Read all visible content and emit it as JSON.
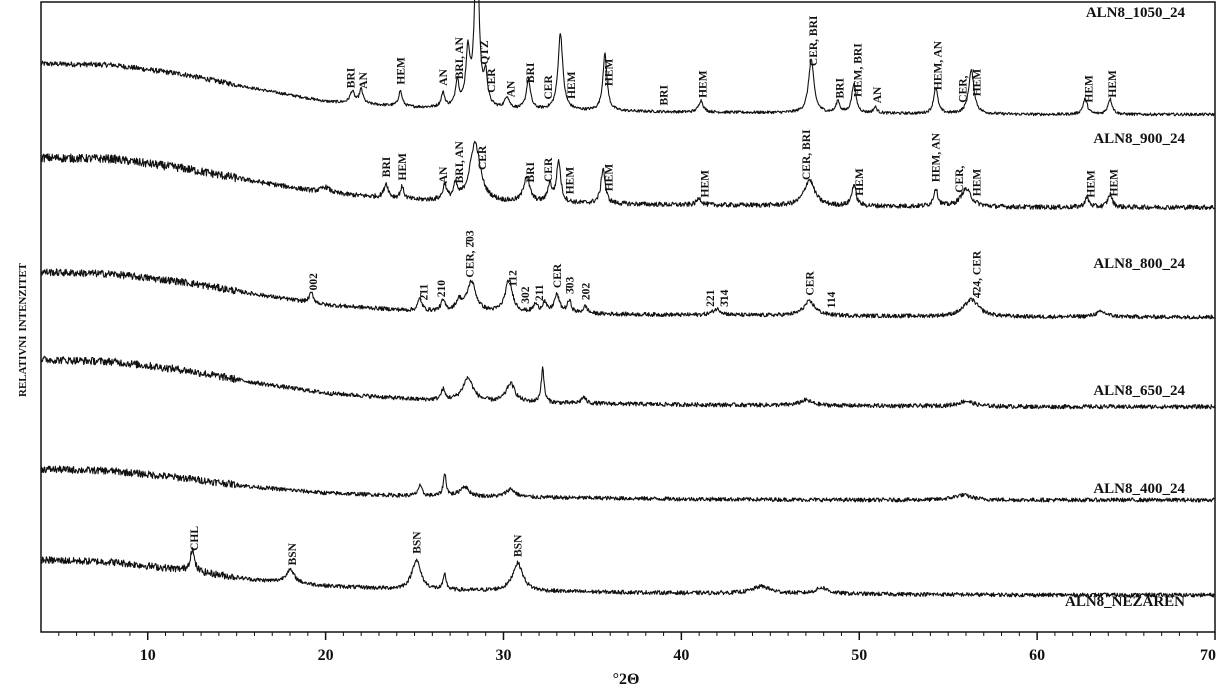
{
  "chart_data": {
    "type": "line",
    "title": "",
    "xlabel": "°2Θ",
    "ylabel": "Relativni intenzitet",
    "xlim": [
      4,
      70
    ],
    "x_ticks": [
      10,
      20,
      30,
      40,
      50,
      60,
      70
    ],
    "x_tick_labels": [
      "10",
      "20",
      "30",
      "40",
      "50",
      "60",
      "70"
    ],
    "grid": false,
    "legend": "none",
    "series": [
      {
        "name": "Aln8_1050_24",
        "display_name": "ALN8_1050_24",
        "baseline": [
          [
            4,
            0.46
          ],
          [
            8,
            0.45
          ],
          [
            12,
            0.37
          ],
          [
            16,
            0.25
          ],
          [
            20,
            0.14
          ],
          [
            25,
            0.09
          ],
          [
            30,
            0.07
          ],
          [
            40,
            0.05
          ],
          [
            50,
            0.04
          ],
          [
            60,
            0.03
          ],
          [
            70,
            0.03
          ]
        ],
        "peaks": [
          [
            21.5,
            0.1,
            0.15
          ],
          [
            22,
            0.12,
            0.12
          ],
          [
            24.2,
            0.13,
            0.12
          ],
          [
            26.6,
            0.12,
            0.12
          ],
          [
            27.4,
            0.22,
            0.12
          ],
          [
            28,
            0.45,
            0.14
          ],
          [
            28.5,
            1.5,
            0.14
          ],
          [
            29,
            0.25,
            0.12
          ],
          [
            30.2,
            0.1,
            0.15
          ],
          [
            31.4,
            0.25,
            0.14
          ],
          [
            33.2,
            0.65,
            0.16
          ],
          [
            35.7,
            0.48,
            0.14
          ],
          [
            41.1,
            0.1,
            0.15
          ],
          [
            47.3,
            0.45,
            0.18
          ],
          [
            48.8,
            0.1,
            0.12
          ],
          [
            49.7,
            0.25,
            0.14
          ],
          [
            50.9,
            0.05,
            0.12
          ],
          [
            54.3,
            0.22,
            0.14
          ],
          [
            56.3,
            0.37,
            0.18
          ],
          [
            62.7,
            0.13,
            0.15
          ],
          [
            64.1,
            0.13,
            0.15
          ]
        ],
        "annotations": [
          {
            "text": "BRI",
            "x": 21.4
          },
          {
            "text": "AN",
            "x": 22.1
          },
          {
            "text": "HEM",
            "x": 24.2
          },
          {
            "text": "AN",
            "x": 26.6
          },
          {
            "text": "BRI, AN",
            "x": 27.5
          },
          {
            "text": "QTZ",
            "x": 28.9
          },
          {
            "text": "CER",
            "x": 29.3
          },
          {
            "text": "AN",
            "x": 30.4
          },
          {
            "text": "BRI",
            "x": 31.5
          },
          {
            "text": "CER",
            "x": 32.5
          },
          {
            "text": "HEM",
            "x": 33.8
          },
          {
            "text": "HEM",
            "x": 35.9
          },
          {
            "text": "BRI",
            "x": 39
          },
          {
            "text": "HEM",
            "x": 41.2
          },
          {
            "text": "CER, BRI",
            "x": 47.4
          },
          {
            "text": "BRI",
            "x": 48.9
          },
          {
            "text": "HEM, BRI",
            "x": 49.9
          },
          {
            "text": "AN",
            "x": 51
          },
          {
            "text": "HEM, AN",
            "x": 54.4
          },
          {
            "text": "CER,",
            "x": 55.8
          },
          {
            "text": "HEM",
            "x": 56.6
          },
          {
            "text": "HEM",
            "x": 62.9
          },
          {
            "text": "HEM",
            "x": 64.2
          }
        ]
      },
      {
        "name": "Aln8_900_24",
        "display_name": "ALN8_900_24",
        "baseline": [
          [
            4,
            0.46
          ],
          [
            8,
            0.45
          ],
          [
            12,
            0.37
          ],
          [
            16,
            0.26
          ],
          [
            20,
            0.16
          ],
          [
            25,
            0.1
          ],
          [
            30,
            0.08
          ],
          [
            40,
            0.06
          ],
          [
            50,
            0.05
          ],
          [
            60,
            0.04
          ],
          [
            70,
            0.04
          ]
        ],
        "peaks": [
          [
            20.0,
            0.05,
            0.3
          ],
          [
            23.4,
            0.12,
            0.14
          ],
          [
            24.3,
            0.1,
            0.12
          ],
          [
            26.7,
            0.13,
            0.12
          ],
          [
            27.3,
            0.12,
            0.12
          ],
          [
            28.4,
            0.5,
            0.35
          ],
          [
            31.3,
            0.22,
            0.2
          ],
          [
            32.6,
            0.15,
            0.14
          ],
          [
            33.1,
            0.35,
            0.14
          ],
          [
            35.6,
            0.3,
            0.14
          ],
          [
            41.0,
            0.06,
            0.15
          ],
          [
            47.2,
            0.22,
            0.35
          ],
          [
            49.7,
            0.18,
            0.14
          ],
          [
            54.3,
            0.15,
            0.14
          ],
          [
            56.0,
            0.15,
            0.35
          ],
          [
            62.8,
            0.08,
            0.15
          ],
          [
            64.1,
            0.11,
            0.15
          ]
        ],
        "annotations": [
          {
            "text": "BRI",
            "x": 23.4
          },
          {
            "text": "HEM",
            "x": 24.3
          },
          {
            "text": "AN",
            "x": 26.6
          },
          {
            "text": "BRI, AN",
            "x": 27.5
          },
          {
            "text": "CER",
            "x": 28.8
          },
          {
            "text": "BRI",
            "x": 31.5
          },
          {
            "text": "CER",
            "x": 32.5
          },
          {
            "text": "HEM",
            "x": 33.7
          },
          {
            "text": "HEM",
            "x": 35.9
          },
          {
            "text": "HEM",
            "x": 41.3
          },
          {
            "text": "CER, BRI",
            "x": 47
          },
          {
            "text": "HEM",
            "x": 50
          },
          {
            "text": "HEM, AN",
            "x": 54.3
          },
          {
            "text": "CER,",
            "x": 55.6
          },
          {
            "text": "HEM",
            "x": 56.6
          },
          {
            "text": "HEM",
            "x": 63
          },
          {
            "text": "HEM",
            "x": 64.3
          }
        ]
      },
      {
        "name": "Aln8_800_24",
        "display_name": "ALN8_800_24",
        "baseline": [
          [
            4,
            0.5
          ],
          [
            8,
            0.48
          ],
          [
            12,
            0.4
          ],
          [
            16,
            0.28
          ],
          [
            20,
            0.17
          ],
          [
            25,
            0.11
          ],
          [
            30,
            0.09
          ],
          [
            40,
            0.07
          ],
          [
            50,
            0.06
          ],
          [
            60,
            0.05
          ],
          [
            70,
            0.05
          ]
        ],
        "peaks": [
          [
            19.2,
            0.1,
            0.14
          ],
          [
            25.3,
            0.12,
            0.14
          ],
          [
            26.6,
            0.1,
            0.14
          ],
          [
            27.5,
            0.1,
            0.2
          ],
          [
            28.2,
            0.3,
            0.3
          ],
          [
            30.3,
            0.32,
            0.25
          ],
          [
            31.8,
            0.08,
            0.15
          ],
          [
            32.3,
            0.1,
            0.14
          ],
          [
            33.0,
            0.18,
            0.18
          ],
          [
            33.7,
            0.12,
            0.14
          ],
          [
            34.6,
            0.07,
            0.15
          ],
          [
            42,
            0.06,
            0.3
          ],
          [
            47.2,
            0.14,
            0.4
          ],
          [
            56.3,
            0.17,
            0.5
          ],
          [
            63.6,
            0.05,
            0.4
          ]
        ],
        "annotations": [
          {
            "text": "002",
            "x": 19.3
          },
          {
            "text": "2̄11",
            "x": 25.5
          },
          {
            "text": "210",
            "x": 26.5
          },
          {
            "text": "CER, 2̄03",
            "x": 28.1
          },
          {
            "text": "112",
            "x": 30.5
          },
          {
            "text": "302",
            "x": 31.2
          },
          {
            "text": "211",
            "x": 32
          },
          {
            "text": "CER",
            "x": 33
          },
          {
            "text": "3̄03",
            "x": 33.7
          },
          {
            "text": "202",
            "x": 34.6
          },
          {
            "text": "221",
            "x": 41.6
          },
          {
            "text": "3̄14",
            "x": 42.4
          },
          {
            "text": "CER",
            "x": 47.2
          },
          {
            "text": "114",
            "x": 48.4
          },
          {
            "text": "4̄24, CER",
            "x": 56.6
          }
        ]
      },
      {
        "name": "Aln8_650_24",
        "display_name": "ALN8_650_24",
        "baseline": [
          [
            4,
            0.5
          ],
          [
            8,
            0.48
          ],
          [
            12,
            0.4
          ],
          [
            16,
            0.28
          ],
          [
            20,
            0.18
          ],
          [
            25,
            0.12
          ],
          [
            30,
            0.09
          ],
          [
            40,
            0.07
          ],
          [
            50,
            0.06
          ],
          [
            60,
            0.05
          ],
          [
            70,
            0.05
          ]
        ],
        "peaks": [
          [
            26.6,
            0.1,
            0.12
          ],
          [
            28.0,
            0.22,
            0.35
          ],
          [
            30.4,
            0.18,
            0.3
          ],
          [
            32.2,
            0.32,
            0.1
          ],
          [
            34.5,
            0.06,
            0.15
          ],
          [
            47,
            0.05,
            0.4
          ],
          [
            56,
            0.05,
            0.5
          ]
        ],
        "annotations": []
      },
      {
        "name": "Aln8_400_24",
        "display_name": "ALN8_400_24",
        "baseline": [
          [
            4,
            0.36
          ],
          [
            8,
            0.34
          ],
          [
            12,
            0.27
          ],
          [
            16,
            0.18
          ],
          [
            20,
            0.12
          ],
          [
            25,
            0.09
          ],
          [
            30,
            0.08
          ],
          [
            40,
            0.06
          ],
          [
            50,
            0.05
          ],
          [
            60,
            0.05
          ],
          [
            70,
            0.05
          ]
        ],
        "peaks": [
          [
            25.3,
            0.1,
            0.14
          ],
          [
            26.7,
            0.22,
            0.1
          ],
          [
            27.8,
            0.1,
            0.3
          ],
          [
            30.4,
            0.08,
            0.3
          ],
          [
            55.8,
            0.05,
            0.6
          ]
        ],
        "annotations": []
      },
      {
        "name": "Aln8_nežaren",
        "display_name": "ALN8_NEŽAREN",
        "baseline": [
          [
            4,
            0.4
          ],
          [
            8,
            0.38
          ],
          [
            12,
            0.3
          ],
          [
            16,
            0.2
          ],
          [
            20,
            0.14
          ],
          [
            25,
            0.1
          ],
          [
            30,
            0.09
          ],
          [
            40,
            0.07
          ],
          [
            50,
            0.06
          ],
          [
            60,
            0.05
          ],
          [
            70,
            0.05
          ]
        ],
        "peaks": [
          [
            12.5,
            0.22,
            0.14
          ],
          [
            18.0,
            0.13,
            0.3
          ],
          [
            25.1,
            0.3,
            0.3
          ],
          [
            26.7,
            0.15,
            0.1
          ],
          [
            30.8,
            0.28,
            0.35
          ],
          [
            44.5,
            0.07,
            0.6
          ],
          [
            47.9,
            0.06,
            0.4
          ]
        ],
        "annotations": [
          {
            "text": "CHL",
            "x": 12.6
          },
          {
            "text": "BSN",
            "x": 18.1
          },
          {
            "text": "BSN",
            "x": 25.1
          },
          {
            "text": "BSN",
            "x": 30.8
          }
        ]
      }
    ]
  }
}
